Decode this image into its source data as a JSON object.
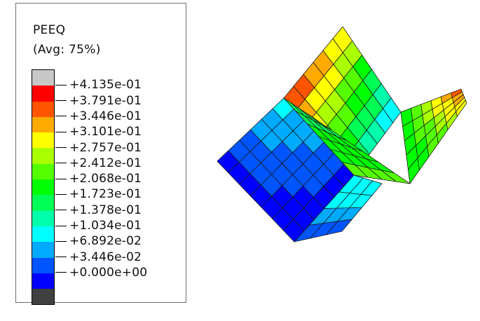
{
  "legend": {
    "title": "PEEQ",
    "subtitle": "(Avg: 75%)",
    "swatch_colors": [
      "#c8c8c8",
      "#ff0000",
      "#ff5500",
      "#ffaa00",
      "#ffff00",
      "#aaff00",
      "#55ff00",
      "#00ff00",
      "#00ff55",
      "#00ffaa",
      "#00ffff",
      "#00aaff",
      "#0055ff",
      "#0000ff",
      "#404040"
    ],
    "tick_labels": [
      "+4.135e-01",
      "+3.791e-01",
      "+3.446e-01",
      "+3.101e-01",
      "+2.757e-01",
      "+2.412e-01",
      "+2.068e-01",
      "+1.723e-01",
      "+1.378e-01",
      "+1.034e-01",
      "+6.892e-02",
      "+3.446e-02",
      "+0.000e+00"
    ]
  }
}
